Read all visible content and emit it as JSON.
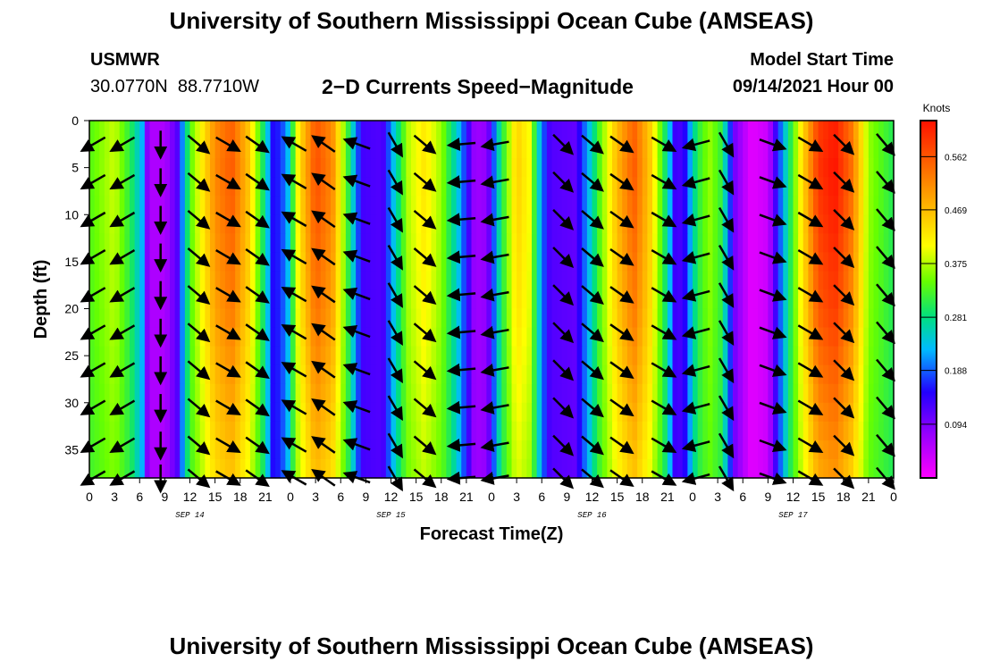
{
  "header": {
    "title": "University of Southern Mississippi Ocean Cube (AMSEAS)",
    "station": "USMWR",
    "lat": "30.0770N",
    "lon": "88.7710W",
    "subtitle": "2−D Currents Speed−Magnitude",
    "model_start_label": "Model Start Time",
    "model_start_value": "09/14/2021 Hour 00"
  },
  "footer": {
    "title": "University of Southern Mississippi Ocean Cube (AMSEAS)"
  },
  "chart_data": {
    "type": "heatmap",
    "title": "2−D Currents Speed−Magnitude",
    "xlabel": "Forecast Time(Z)",
    "ylabel": "Depth (ft)",
    "xlim_hours": [
      0,
      96
    ],
    "ylim_ft": [
      0,
      38
    ],
    "x_tick_labels": [
      "0",
      "3",
      "6",
      "9",
      "12",
      "15",
      "18",
      "21",
      "0",
      "3",
      "6",
      "9",
      "12",
      "15",
      "18",
      "21",
      "0",
      "3",
      "6",
      "9",
      "12",
      "15",
      "18",
      "21",
      "0",
      "3",
      "6",
      "9",
      "12",
      "15",
      "18",
      "21",
      "0"
    ],
    "day_labels": [
      {
        "label": "SEP 14",
        "hour": 12
      },
      {
        "label": "SEP 15",
        "hour": 36
      },
      {
        "label": "SEP 16",
        "hour": 60
      },
      {
        "label": "SEP 17",
        "hour": 84
      }
    ],
    "y_ticks": [
      0,
      5,
      10,
      15,
      20,
      25,
      30,
      35
    ],
    "colorbar": {
      "units": "Knots",
      "min": 0.0,
      "max": 0.625,
      "tick_values": [
        0.094,
        0.188,
        0.281,
        0.375,
        0.469,
        0.562
      ],
      "tick_labels": [
        "0.094",
        "0.188",
        "0.281",
        "0.375",
        "0.469",
        "0.562"
      ]
    },
    "speed_profile_knots": [
      {
        "hour": 0,
        "speed": 0.33
      },
      {
        "hour": 3,
        "speed": 0.38
      },
      {
        "hour": 5,
        "speed": 0.3
      },
      {
        "hour": 6.5,
        "speed": 0.21
      },
      {
        "hour": 7,
        "speed": 0.06
      },
      {
        "hour": 9,
        "speed": 0.06
      },
      {
        "hour": 10.5,
        "speed": 0.12
      },
      {
        "hour": 12,
        "speed": 0.33
      },
      {
        "hour": 15,
        "speed": 0.5
      },
      {
        "hour": 17,
        "speed": 0.54
      },
      {
        "hour": 19,
        "speed": 0.45
      },
      {
        "hour": 21,
        "speed": 0.27
      },
      {
        "hour": 22,
        "speed": 0.14
      },
      {
        "hour": 23.5,
        "speed": 0.2
      },
      {
        "hour": 25,
        "speed": 0.42
      },
      {
        "hour": 27,
        "speed": 0.55
      },
      {
        "hour": 29,
        "speed": 0.5
      },
      {
        "hour": 31,
        "speed": 0.3
      },
      {
        "hour": 32.5,
        "speed": 0.13
      },
      {
        "hour": 35,
        "speed": 0.12
      },
      {
        "hour": 36.5,
        "speed": 0.25
      },
      {
        "hour": 38,
        "speed": 0.37
      },
      {
        "hour": 40,
        "speed": 0.42
      },
      {
        "hour": 42,
        "speed": 0.36
      },
      {
        "hour": 44,
        "speed": 0.24
      },
      {
        "hour": 46,
        "speed": 0.07
      },
      {
        "hour": 47.5,
        "speed": 0.08
      },
      {
        "hour": 49,
        "speed": 0.28
      },
      {
        "hour": 51,
        "speed": 0.44
      },
      {
        "hour": 52.5,
        "speed": 0.4
      },
      {
        "hour": 54,
        "speed": 0.2
      },
      {
        "hour": 55,
        "speed": 0.12
      },
      {
        "hour": 58,
        "speed": 0.11
      },
      {
        "hour": 59.5,
        "speed": 0.22
      },
      {
        "hour": 61,
        "speed": 0.34
      },
      {
        "hour": 63,
        "speed": 0.46
      },
      {
        "hour": 65,
        "speed": 0.54
      },
      {
        "hour": 67,
        "speed": 0.44
      },
      {
        "hour": 69,
        "speed": 0.27
      },
      {
        "hour": 70,
        "speed": 0.12
      },
      {
        "hour": 71,
        "speed": 0.14
      },
      {
        "hour": 72.5,
        "speed": 0.3
      },
      {
        "hour": 74,
        "speed": 0.36
      },
      {
        "hour": 75.5,
        "speed": 0.31
      },
      {
        "hour": 77,
        "speed": 0.1
      },
      {
        "hour": 79,
        "speed": 0.02
      },
      {
        "hour": 81,
        "speed": 0.04
      },
      {
        "hour": 83,
        "speed": 0.24
      },
      {
        "hour": 85,
        "speed": 0.42
      },
      {
        "hour": 87,
        "speed": 0.57
      },
      {
        "hour": 89,
        "speed": 0.6
      },
      {
        "hour": 91,
        "speed": 0.52
      },
      {
        "hour": 93,
        "speed": 0.36
      },
      {
        "hour": 96,
        "speed": 0.3
      }
    ],
    "depth_peak_factor": [
      {
        "depth": 0,
        "factor": 1.05
      },
      {
        "depth": 5,
        "factor": 1.08
      },
      {
        "depth": 10,
        "factor": 1.05
      },
      {
        "depth": 15,
        "factor": 1.0
      },
      {
        "depth": 20,
        "factor": 0.96
      },
      {
        "depth": 25,
        "factor": 0.88
      },
      {
        "depth": 30,
        "factor": 0.8
      },
      {
        "depth": 35,
        "factor": 0.72
      },
      {
        "depth": 38,
        "factor": 0.68
      }
    ],
    "vector_columns": [
      {
        "hour": 0.5,
        "angle_deg": 150
      },
      {
        "hour": 4,
        "angle_deg": 150
      },
      {
        "hour": 8.5,
        "angle_deg": 90
      },
      {
        "hour": 13,
        "angle_deg": 40
      },
      {
        "hour": 16.5,
        "angle_deg": 30
      },
      {
        "hour": 20,
        "angle_deg": 35
      },
      {
        "hour": 24.5,
        "angle_deg": 210
      },
      {
        "hour": 28,
        "angle_deg": 215
      },
      {
        "hour": 32,
        "angle_deg": 200
      },
      {
        "hour": 36.5,
        "angle_deg": 60
      },
      {
        "hour": 40,
        "angle_deg": 40
      },
      {
        "hour": 44.5,
        "angle_deg": 175
      },
      {
        "hour": 48.5,
        "angle_deg": 170
      },
      {
        "hour": 56.5,
        "angle_deg": 45
      },
      {
        "hour": 60,
        "angle_deg": 40
      },
      {
        "hour": 63.5,
        "angle_deg": 35
      },
      {
        "hour": 68.5,
        "angle_deg": 30
      },
      {
        "hour": 72.5,
        "angle_deg": 165
      },
      {
        "hour": 76,
        "angle_deg": 60
      },
      {
        "hour": 81.5,
        "angle_deg": 20
      },
      {
        "hour": 86,
        "angle_deg": 30
      },
      {
        "hour": 90,
        "angle_deg": 45
      },
      {
        "hour": 95,
        "angle_deg": 50
      }
    ],
    "vector_depths_ft": [
      2.5,
      6.5,
      10.5,
      14.5,
      18.5,
      22.5,
      26.5,
      30.5,
      34.5,
      38
    ]
  }
}
